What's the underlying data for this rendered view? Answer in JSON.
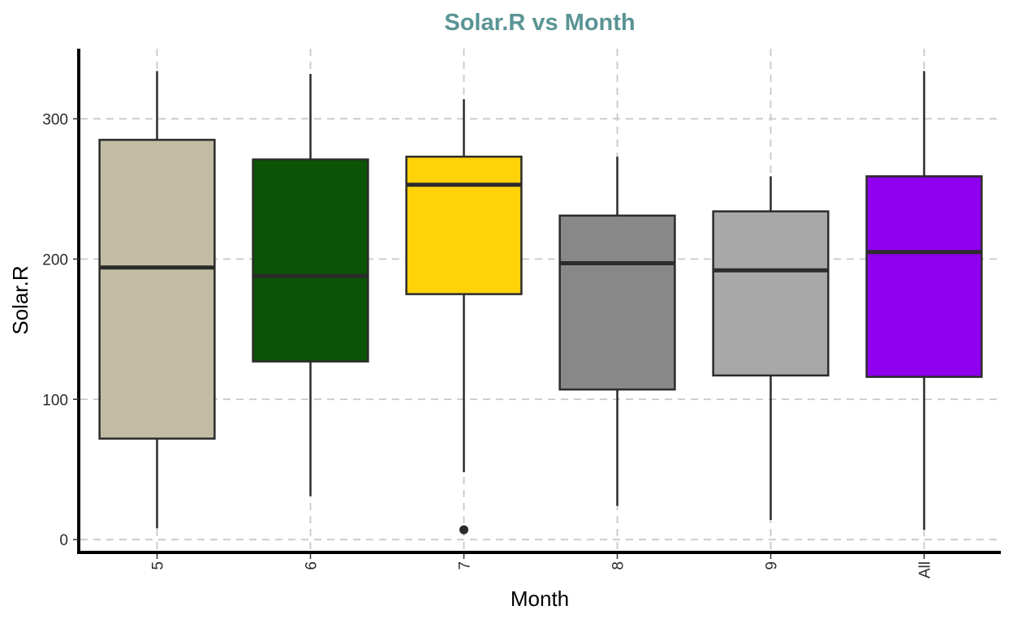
{
  "chart_data": {
    "type": "boxplot",
    "title": "Solar.R vs Month",
    "xlabel": "Month",
    "ylabel": "Solar.R",
    "ylim": [
      -8,
      350
    ],
    "yticks": [
      0,
      100,
      200,
      300
    ],
    "grid": true,
    "legend": "none",
    "title_color": "#5a9494",
    "categories": [
      "5",
      "6",
      "7",
      "8",
      "9",
      "All"
    ],
    "boxes": [
      {
        "category": "5",
        "min": 8,
        "q1": 72,
        "median": 194,
        "q3": 285,
        "max": 334,
        "outliers": [],
        "fill": "#c2bca4"
      },
      {
        "category": "6",
        "min": 31,
        "q1": 127,
        "median": 188,
        "q3": 271,
        "max": 332,
        "outliers": [],
        "fill": "#0b5305"
      },
      {
        "category": "7",
        "min": 48,
        "q1": 175,
        "median": 253,
        "q3": 273,
        "max": 314,
        "outliers": [
          7
        ],
        "fill": "#ffd20a"
      },
      {
        "category": "8",
        "min": 24,
        "q1": 107,
        "median": 197,
        "q3": 231,
        "max": 273,
        "outliers": [],
        "fill": "#888888"
      },
      {
        "category": "9",
        "min": 14,
        "q1": 117,
        "median": 192,
        "q3": 234,
        "max": 259,
        "outliers": [],
        "fill": "#a8a8a8"
      },
      {
        "category": "All",
        "min": 7,
        "q1": 116,
        "median": 205,
        "q3": 259,
        "max": 334,
        "outliers": [],
        "fill": "#8f00ee"
      }
    ]
  }
}
